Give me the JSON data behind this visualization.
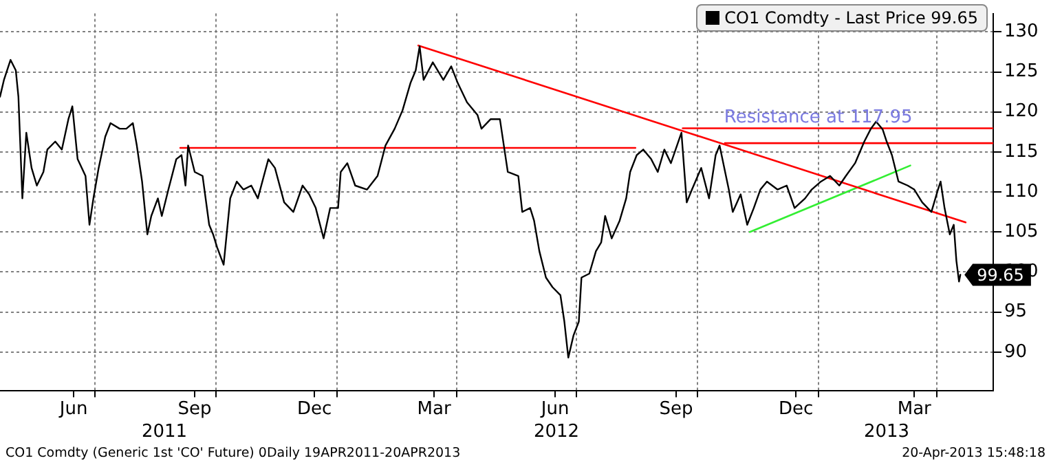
{
  "chart_data": {
    "type": "line",
    "marker": "none",
    "grid": true,
    "legend": "top right",
    "xlim": [
      "2011-04-20",
      "2013-05-14"
    ],
    "xticks": [
      {
        "value": "2011-06-15",
        "label": "Jun"
      },
      {
        "value": "2011-07-01",
        "label": null
      },
      {
        "value": "2011-09-15",
        "label": "Sep"
      },
      {
        "value": "2011-10-01",
        "label": null
      },
      {
        "value": "2011-12-15",
        "label": "Dec"
      },
      {
        "value": "2012-01-01",
        "label": null
      },
      {
        "value": "2012-03-15",
        "label": "Mar"
      },
      {
        "value": "2012-04-01",
        "label": null
      },
      {
        "value": "2012-06-15",
        "label": "Jun"
      },
      {
        "value": "2012-07-01",
        "label": null
      },
      {
        "value": "2012-09-15",
        "label": "Sep"
      },
      {
        "value": "2012-10-01",
        "label": null
      },
      {
        "value": "2012-12-15",
        "label": "Dec"
      },
      {
        "value": "2013-01-01",
        "label": null
      },
      {
        "value": "2013-03-15",
        "label": "Mar"
      },
      {
        "value": "2013-04-01",
        "label": null
      }
    ],
    "ylim": [
      85.2,
      132.3
    ],
    "yticks": [
      90,
      95,
      100,
      105,
      110,
      115,
      120,
      125,
      130
    ],
    "x2lim": [
      "2011-04-20",
      "2013-05-14"
    ],
    "x2ticks": [
      {
        "value": "2011-08-23",
        "label": "2011"
      },
      {
        "value": "2012-06-16",
        "label": "2012"
      },
      {
        "value": "2013-02-22",
        "label": "2013"
      }
    ],
    "annotations": [
      {
        "text": "Resistance at 117.95",
        "x": "2013-01-01",
        "y": 117.95
      },
      "CO1 Comdty (Generic 1st 'CO' Future) 0Daily 19APR2011-20APR2013",
      "20-Apr-2013 15:48:18"
    ],
    "series": [
      {
        "name": "CO1 Comdty - Last Price 99.65",
        "color": "#000000",
        "x": [
          "2011-04-20",
          "2011-04-23",
          "2011-04-28",
          "2011-05-02",
          "2011-05-04",
          "2011-05-07",
          "2011-05-10",
          "2011-05-14",
          "2011-05-18",
          "2011-05-23",
          "2011-05-26",
          "2011-06-01",
          "2011-06-06",
          "2011-06-11",
          "2011-06-14",
          "2011-06-18",
          "2011-06-24",
          "2011-06-27",
          "2011-06-30",
          "2011-07-04",
          "2011-07-09",
          "2011-07-13",
          "2011-07-20",
          "2011-07-25",
          "2011-07-30",
          "2011-08-02",
          "2011-08-06",
          "2011-08-10",
          "2011-08-13",
          "2011-08-18",
          "2011-08-21",
          "2011-08-26",
          "2011-09-01",
          "2011-09-05",
          "2011-09-08",
          "2011-09-10",
          "2011-09-15",
          "2011-09-21",
          "2011-09-26",
          "2011-09-29",
          "2011-10-02",
          "2011-10-07",
          "2011-10-12",
          "2011-10-17",
          "2011-10-22",
          "2011-10-28",
          "2011-11-02",
          "2011-11-10",
          "2011-11-15",
          "2011-11-22",
          "2011-11-29",
          "2011-12-06",
          "2011-12-11",
          "2011-12-16",
          "2011-12-22",
          "2011-12-27",
          "2012-01-02",
          "2012-01-04",
          "2012-01-09",
          "2012-01-15",
          "2012-01-24",
          "2012-02-01",
          "2012-02-07",
          "2012-02-14",
          "2012-02-20",
          "2012-02-26",
          "2012-03-01",
          "2012-03-04",
          "2012-03-07",
          "2012-03-14",
          "2012-03-22",
          "2012-03-28",
          "2012-04-02",
          "2012-04-09",
          "2012-04-17",
          "2012-04-20",
          "2012-04-27",
          "2012-05-04",
          "2012-05-07",
          "2012-05-10",
          "2012-05-18",
          "2012-05-21",
          "2012-05-27",
          "2012-05-30",
          "2012-06-03",
          "2012-06-08",
          "2012-06-13",
          "2012-06-19",
          "2012-06-22",
          "2012-06-25",
          "2012-06-29",
          "2012-07-03",
          "2012-07-05",
          "2012-07-11",
          "2012-07-16",
          "2012-07-20",
          "2012-07-23",
          "2012-07-28",
          "2012-08-03",
          "2012-08-08",
          "2012-08-11",
          "2012-08-16",
          "2012-08-21",
          "2012-08-27",
          "2012-09-01",
          "2012-09-06",
          "2012-09-11",
          "2012-09-19",
          "2012-09-23",
          "2012-09-27",
          "2012-10-04",
          "2012-10-10",
          "2012-10-15",
          "2012-10-18",
          "2012-10-25",
          "2012-10-28",
          "2012-11-03",
          "2012-11-08",
          "2012-11-13",
          "2012-11-18",
          "2012-11-23",
          "2012-12-01",
          "2012-12-08",
          "2012-12-14",
          "2012-12-22",
          "2012-12-27",
          "2013-01-03",
          "2013-01-10",
          "2013-01-17",
          "2013-01-22",
          "2013-01-29",
          "2013-02-05",
          "2013-02-10",
          "2013-02-14",
          "2013-02-19",
          "2013-02-22",
          "2013-02-26",
          "2013-03-03",
          "2013-03-10",
          "2013-03-15",
          "2013-03-21",
          "2013-03-28",
          "2013-04-02",
          "2013-04-04",
          "2013-04-07",
          "2013-04-11",
          "2013-04-14",
          "2013-04-16",
          "2013-04-18",
          "2013-04-19"
        ],
        "values": [
          121.9,
          124.0,
          126.5,
          125.2,
          121.9,
          109.2,
          117.4,
          113.0,
          110.8,
          112.5,
          115.3,
          116.3,
          115.3,
          119.1,
          120.7,
          114.1,
          112.0,
          105.9,
          109.2,
          113.0,
          116.9,
          118.6,
          117.9,
          117.9,
          118.6,
          115.8,
          111.3,
          104.7,
          107.0,
          109.2,
          107.0,
          110.3,
          114.1,
          114.6,
          110.8,
          115.8,
          112.5,
          112.0,
          105.9,
          104.7,
          103.1,
          100.9,
          109.2,
          111.3,
          110.3,
          110.8,
          109.2,
          114.1,
          113.0,
          108.7,
          107.5,
          110.8,
          109.7,
          108.0,
          104.2,
          108.0,
          108.0,
          112.5,
          113.6,
          110.8,
          110.3,
          112.0,
          115.8,
          117.9,
          120.2,
          123.6,
          125.2,
          128.2,
          124.0,
          126.2,
          124.0,
          125.7,
          123.6,
          121.2,
          119.6,
          117.9,
          119.1,
          119.1,
          115.8,
          112.5,
          112.0,
          107.5,
          108.0,
          106.4,
          102.6,
          99.3,
          98.1,
          97.1,
          93.8,
          89.3,
          92.1,
          93.8,
          99.3,
          99.8,
          102.6,
          103.7,
          107.0,
          104.2,
          106.4,
          109.2,
          112.5,
          114.6,
          115.3,
          114.1,
          112.5,
          115.3,
          113.6,
          117.4,
          108.7,
          110.3,
          113.0,
          109.2,
          114.6,
          115.8,
          110.3,
          107.5,
          109.7,
          105.9,
          108.0,
          110.3,
          111.3,
          110.3,
          110.8,
          108.0,
          109.2,
          110.3,
          111.3,
          112.0,
          110.8,
          112.0,
          113.6,
          116.3,
          117.9,
          118.8,
          117.8,
          116.3,
          114.6,
          111.3,
          110.8,
          110.3,
          108.7,
          107.5,
          110.3,
          111.3,
          108.0,
          104.7,
          105.9,
          101.4,
          98.8,
          99.65
        ],
        "value_labels": [
          null,
          null,
          null,
          null,
          null,
          null,
          null,
          null,
          null,
          null,
          null,
          null,
          null,
          null,
          null,
          null,
          null,
          null,
          null,
          null,
          null,
          null,
          null,
          null,
          null,
          null,
          null,
          null,
          null,
          null,
          null,
          null,
          null,
          null,
          null,
          null,
          null,
          null,
          null,
          null,
          null,
          null,
          null,
          null,
          null,
          null,
          null,
          null,
          null,
          null,
          null,
          null,
          null,
          null,
          null,
          null,
          null,
          null,
          null,
          null,
          null,
          null,
          null,
          null,
          null,
          null,
          null,
          null,
          null,
          null,
          null,
          null,
          null,
          null,
          null,
          null,
          null,
          null,
          null,
          null,
          null,
          null,
          null,
          null,
          null,
          null,
          null,
          null,
          null,
          null,
          null,
          null,
          null,
          null,
          null,
          null,
          null,
          null,
          null,
          null,
          null,
          null,
          null,
          null,
          null,
          null,
          null,
          null,
          null,
          null,
          null,
          null,
          null,
          null,
          null,
          null,
          null,
          null,
          null,
          null,
          null,
          null,
          null,
          null,
          null,
          null,
          null,
          null,
          null,
          null,
          null,
          null,
          null,
          null,
          null,
          null,
          null,
          null,
          null,
          null,
          null,
          null,
          null,
          null,
          null,
          null,
          null,
          null,
          null,
          "99.65"
        ]
      },
      {
        "type": "line",
        "color": "#ff0000",
        "x": [
          "2011-09-04",
          "2012-08-15"
        ],
        "values": [
          115.5,
          115.5
        ]
      },
      {
        "type": "line",
        "color": "#ff0000",
        "x": [
          "2012-09-20",
          "2013-05-14"
        ],
        "values": [
          117.95,
          117.95
        ]
      },
      {
        "type": "line",
        "color": "#ff0000",
        "x": [
          "2012-10-22",
          "2013-05-14"
        ],
        "values": [
          116.1,
          116.1
        ]
      },
      {
        "type": "line",
        "color": "#ff0000",
        "x": [
          "2012-03-03",
          "2013-04-23"
        ],
        "values": [
          128.3,
          106.2
        ]
      },
      {
        "type": "line",
        "color": "#33ee33",
        "x": [
          "2012-11-10",
          "2013-03-12"
        ],
        "values": [
          105.0,
          113.3
        ]
      }
    ]
  }
}
